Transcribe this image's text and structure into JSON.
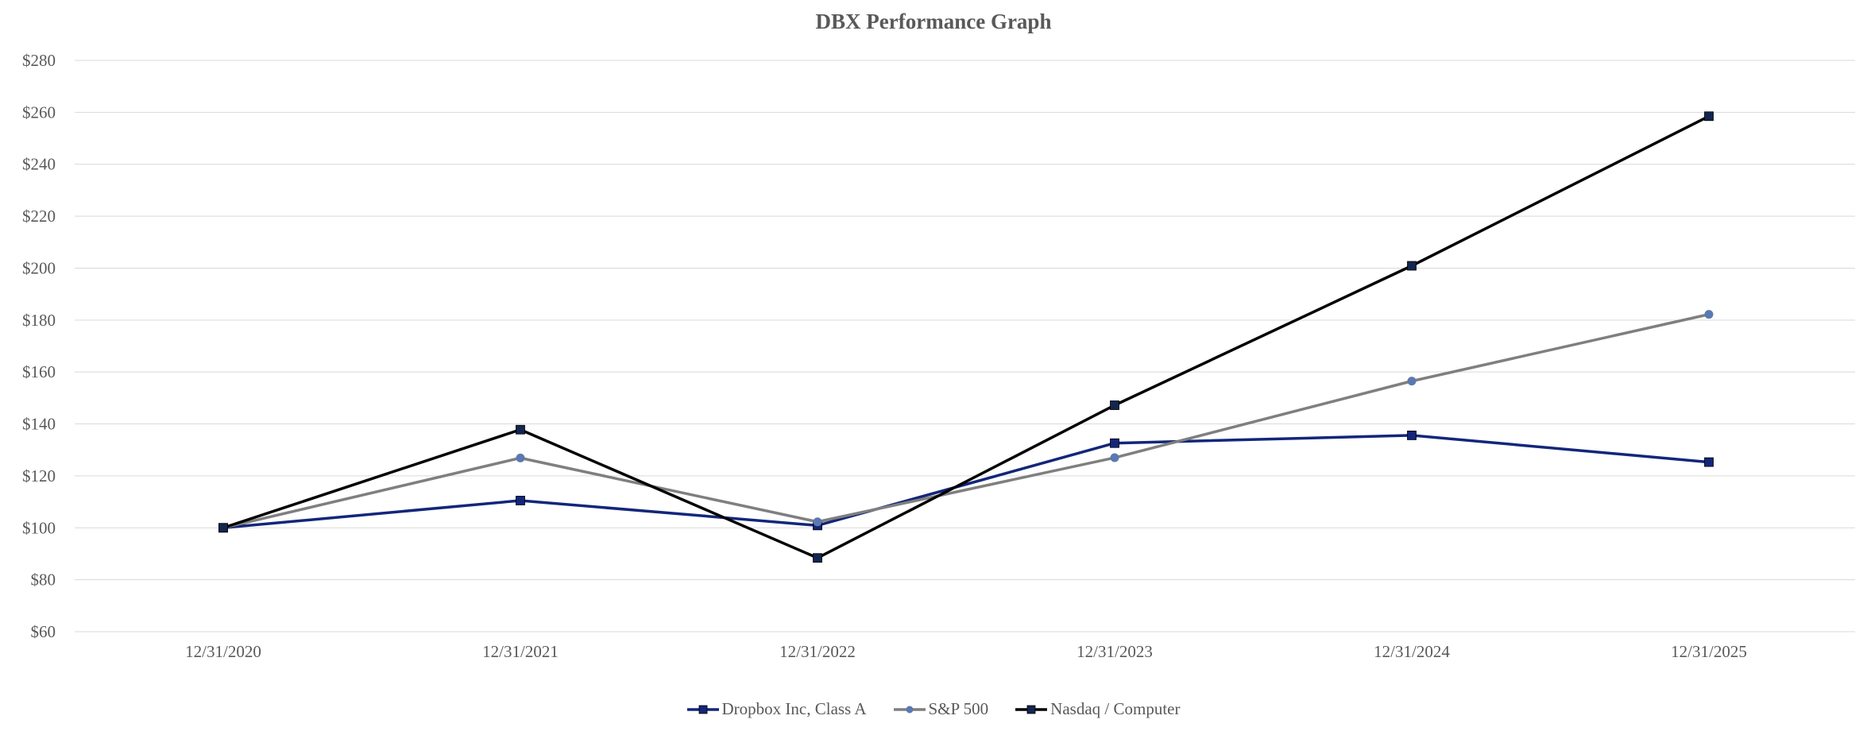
{
  "chart_data": {
    "type": "line",
    "title": "DBX Performance Graph",
    "xlabel": "",
    "ylabel": "",
    "categories": [
      "12/31/2020",
      "12/31/2021",
      "12/31/2022",
      "12/31/2023",
      "12/31/2024",
      "12/31/2025"
    ],
    "ylim": [
      60,
      280
    ],
    "yticks": [
      60,
      80,
      100,
      120,
      140,
      160,
      180,
      200,
      220,
      240,
      260,
      280
    ],
    "ytick_labels": [
      "$60",
      "$80",
      "$100",
      "$120",
      "$140",
      "$160",
      "$180",
      "$200",
      "$220",
      "$240",
      "$260",
      "$280"
    ],
    "grid": true,
    "legend_position": "bottom",
    "series": [
      {
        "name": "Dropbox Inc, Class A",
        "color": "#13267A",
        "marker": "square",
        "values": [
          100,
          110.5,
          100.9,
          132.6,
          135.6,
          125.3
        ]
      },
      {
        "name": "S&P 500",
        "color": "#7F7F7F",
        "marker_color": "#5B79B0",
        "marker": "circle",
        "values": [
          100,
          126.9,
          102.3,
          127.0,
          156.5,
          182.2
        ]
      },
      {
        "name": "Nasdaq / Computer",
        "color": "#000000",
        "marker_color": "#13264F",
        "marker": "square",
        "values": [
          100,
          137.8,
          88.4,
          147.2,
          200.9,
          258.5
        ]
      }
    ]
  }
}
